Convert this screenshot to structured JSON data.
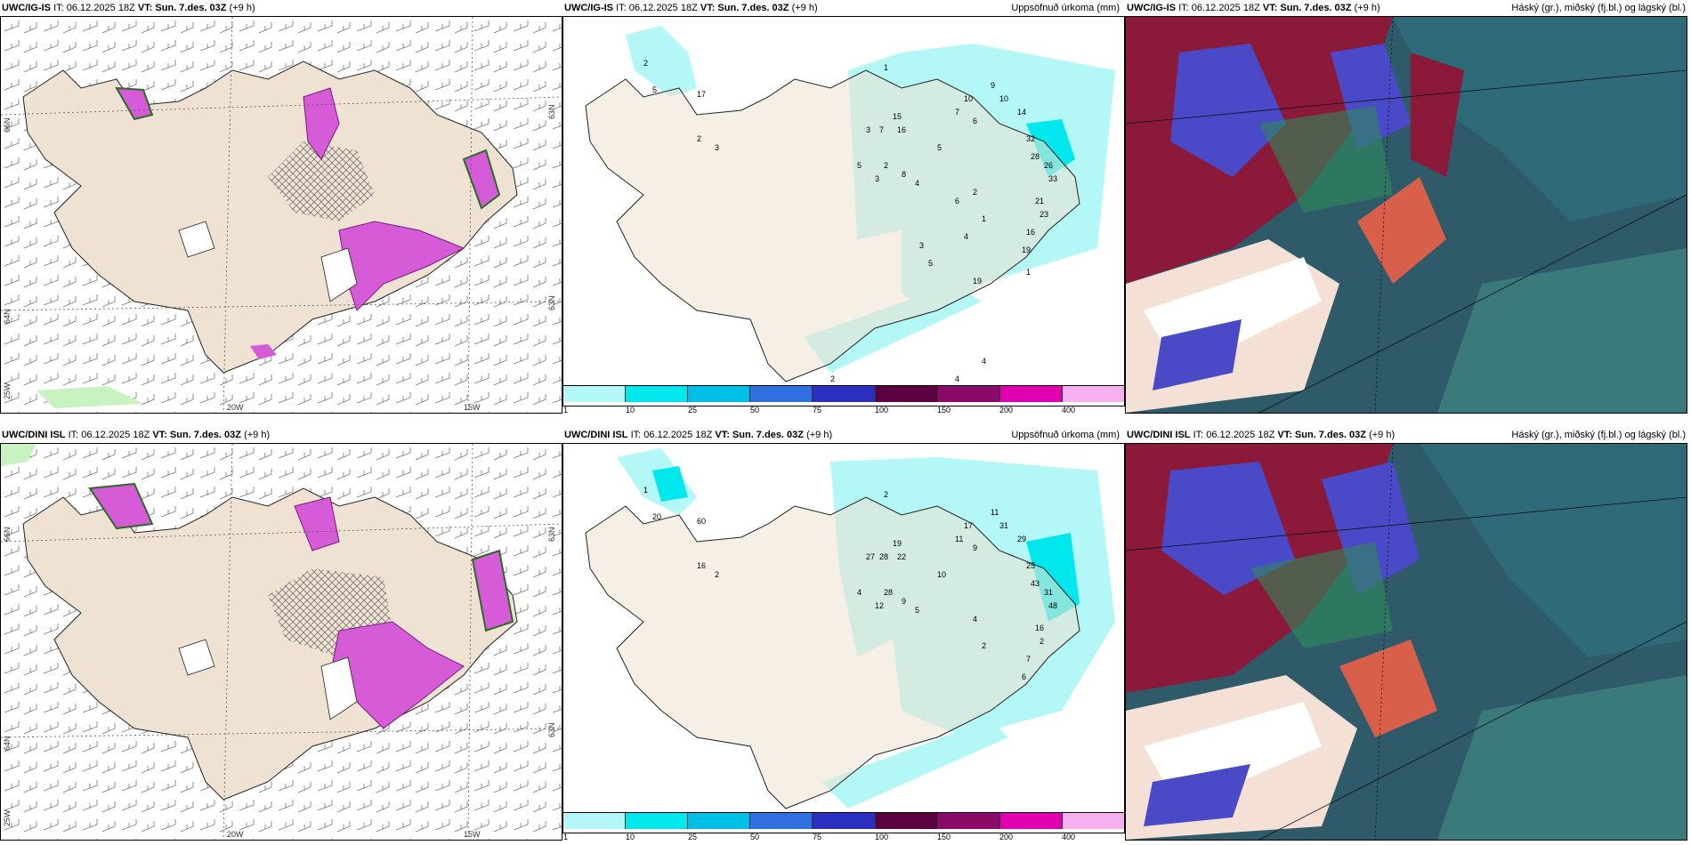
{
  "panels": [
    {
      "model": "UWC/IG-IS",
      "it": "IT: 06.12.2025 18Z",
      "vt": "VT: Sun. 7.des. 03Z",
      "offset": "(+9 h)",
      "right_title": ""
    },
    {
      "model": "UWC/IG-IS",
      "it": "IT: 06.12.2025 18Z",
      "vt": "VT: Sun. 7.des. 03Z",
      "offset": "(+9 h)",
      "right_title": "Uppsöfnuð úrkoma (mm)"
    },
    {
      "model": "UWC/IG-IS",
      "it": "IT: 06.12.2025 18Z",
      "vt": "VT: Sun. 7.des. 03Z",
      "offset": "(+9 h)",
      "right_title": "Háský (gr.), miðský (fj.bl.) og lágský (bl.)"
    },
    {
      "model": "UWC/DINI ISL",
      "it": "IT: 06.12.2025 18Z",
      "vt": "VT: Sun. 7.des. 03Z",
      "offset": "(+9 h)",
      "right_title": ""
    },
    {
      "model": "UWC/DINI ISL",
      "it": "IT: 06.12.2025 18Z",
      "vt": "VT: Sun. 7.des. 03Z",
      "offset": "(+9 h)",
      "right_title": "Uppsöfnuð úrkoma (mm)"
    },
    {
      "model": "UWC/DINI ISL",
      "it": "IT: 06.12.2025 18Z",
      "vt": "VT: Sun. 7.des. 03Z",
      "offset": "(+9 h)",
      "right_title": "Háský (gr.), miðský (fj.bl.) og lágský (bl.)"
    }
  ],
  "axis_labels": {
    "lat66": "66N",
    "lat64": "64N",
    "lat63": "63N",
    "lon20": "20W",
    "lon15": "15W",
    "lon25": "25W"
  },
  "colorbar": {
    "ticks": [
      "1",
      "10",
      "25",
      "50",
      "75",
      "100",
      "150",
      "200",
      "400"
    ],
    "colors": [
      "#b3f7f7",
      "#00e8ee",
      "#00bfe6",
      "#2f6fe0",
      "#2a2fc0",
      "#5a0040",
      "#8a0a6a",
      "#e000b0",
      "#f5b0f0"
    ]
  },
  "precip_top_values": [
    "2",
    "5",
    "17",
    "2",
    "3",
    "1",
    "10",
    "7",
    "6",
    "9",
    "10",
    "14",
    "32",
    "28",
    "26",
    "33",
    "3",
    "7",
    "15",
    "16",
    "2",
    "3",
    "8",
    "4",
    "5",
    "5",
    "21",
    "23",
    "16",
    "19",
    "2",
    "1",
    "6",
    "4",
    "3",
    "5",
    "19",
    "1",
    "4",
    "4",
    "2"
  ],
  "precip_bottom_values": [
    "1",
    "20",
    "60",
    "16",
    "2",
    "2",
    "17",
    "11",
    "9",
    "11",
    "31",
    "29",
    "25",
    "43",
    "31",
    "48",
    "27",
    "28",
    "19",
    "22",
    "28",
    "12",
    "9",
    "5",
    "4",
    "10",
    "16",
    "2",
    "7",
    "6",
    "4",
    "2"
  ],
  "colors": {
    "land": "#efe2d2",
    "precip_light": "#b3f7f7",
    "precip_mid": "#00e8ee",
    "snow_purple": "#d65bd6",
    "green_light": "#c8f2c0",
    "cloud_high": "#2f4f78",
    "cloud_mid": "#8b1a3a",
    "cloud_low": "#4040c0"
  }
}
